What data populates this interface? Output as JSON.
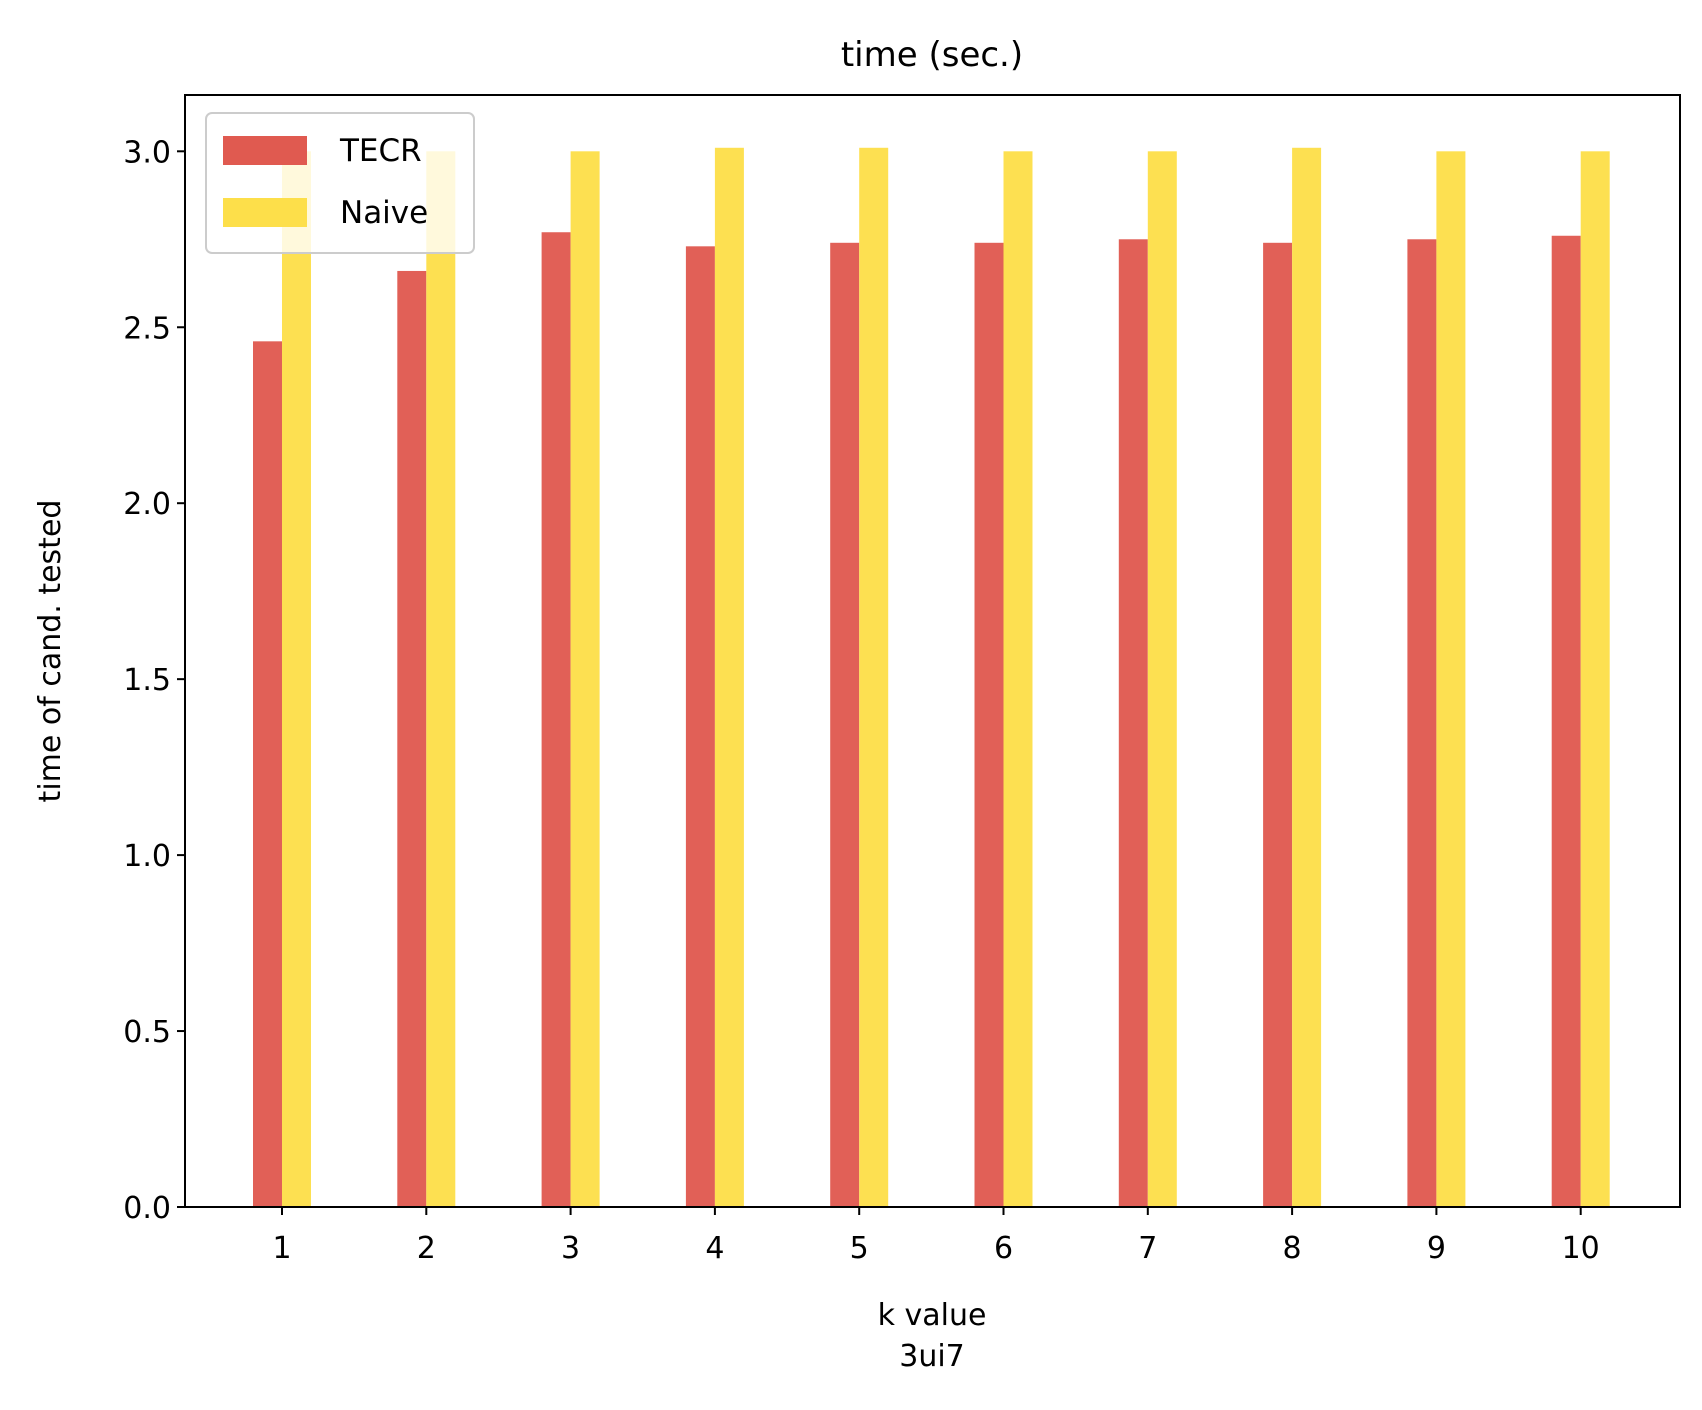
{
  "chart_data": {
    "type": "bar",
    "title": "time (sec.)",
    "xlabel": "k value",
    "xlabel2": "3ui7",
    "ylabel": "time of cand. tested",
    "categories": [
      "1",
      "2",
      "3",
      "4",
      "5",
      "6",
      "7",
      "8",
      "9",
      "10"
    ],
    "series": [
      {
        "name": "TECR",
        "color": "#e05a50",
        "values": [
          2.46,
          2.66,
          2.77,
          2.73,
          2.74,
          2.74,
          2.75,
          2.74,
          2.75,
          2.76
        ]
      },
      {
        "name": "Naive",
        "color": "#fddf4a",
        "values": [
          3.0,
          3.0,
          3.0,
          3.01,
          3.01,
          3.0,
          3.0,
          3.01,
          3.0,
          3.0
        ]
      }
    ],
    "yticks": [
      "0.0",
      "0.5",
      "1.0",
      "1.5",
      "2.0",
      "2.5",
      "3.0"
    ],
    "ylim": [
      0,
      3.16
    ],
    "grid": false,
    "legend_position": "top-left"
  }
}
